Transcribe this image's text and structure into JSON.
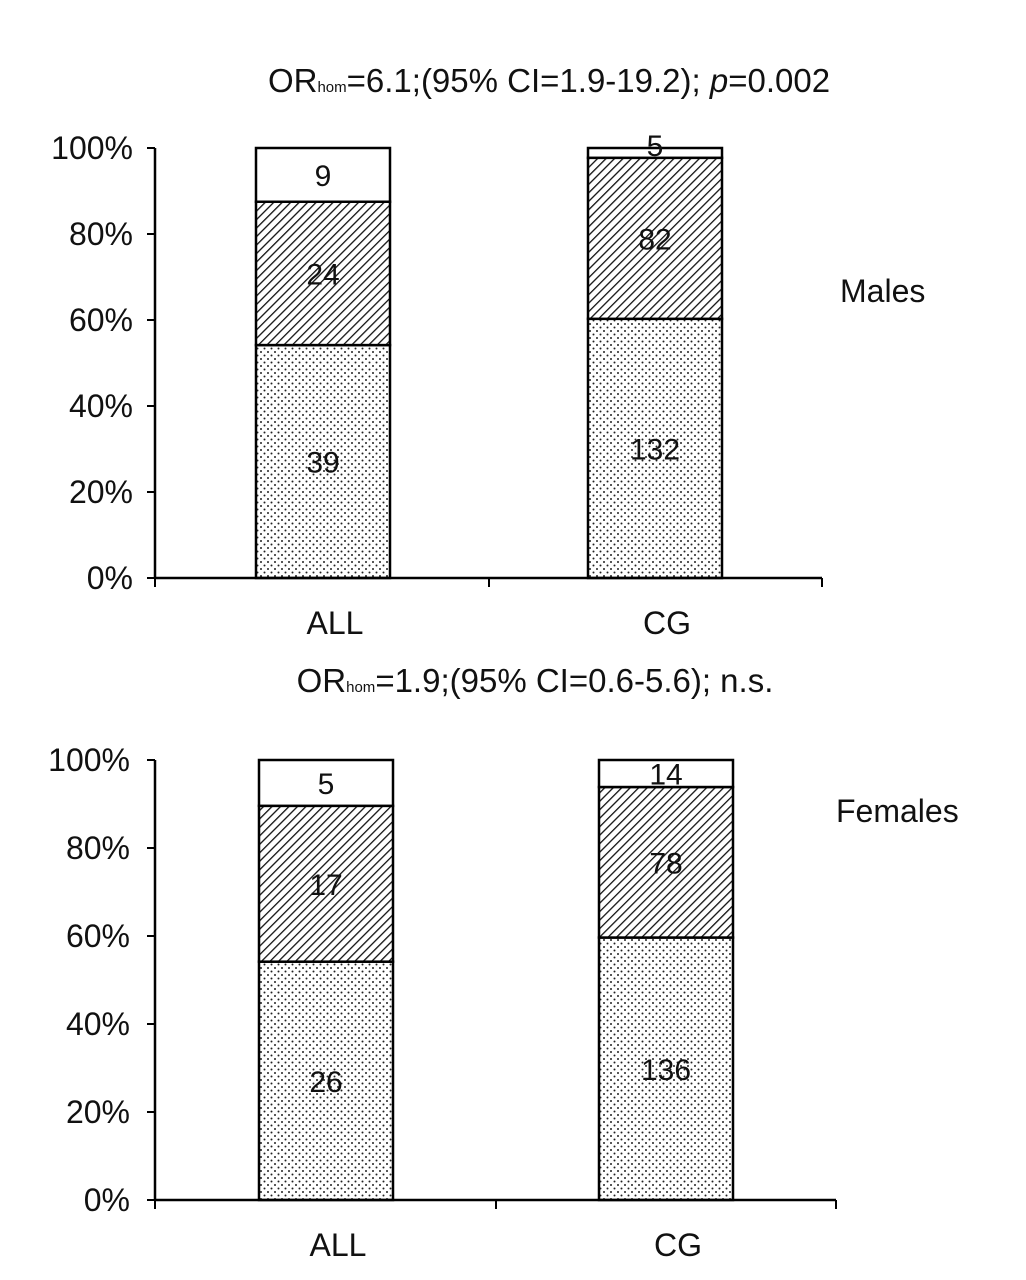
{
  "chart_data": [
    {
      "type": "bar",
      "stacked": true,
      "normalized": true,
      "title_prefix": "OR",
      "title_subscript": "hom",
      "title_suffix": "=6.1;(95% CI=1.9-19.2); ",
      "title_italic": "p",
      "title_end": "=0.002",
      "side_label": "Males",
      "categories": [
        "ALL",
        "CG"
      ],
      "yticks": [
        "0%",
        "20%",
        "40%",
        "60%",
        "80%",
        "100%"
      ],
      "ylim": [
        0,
        100
      ],
      "series": [
        {
          "pattern": "dots",
          "values": [
            39,
            132
          ],
          "labels": [
            "39",
            "132"
          ]
        },
        {
          "pattern": "hatch",
          "values": [
            24,
            82
          ],
          "labels": [
            "24",
            "82"
          ]
        },
        {
          "pattern": "white",
          "values": [
            9,
            5
          ],
          "labels": [
            "9",
            "5"
          ]
        }
      ]
    },
    {
      "type": "bar",
      "stacked": true,
      "normalized": true,
      "title_prefix": "OR",
      "title_subscript": "hom",
      "title_suffix": "=1.9;(95% CI=0.6-5.6); n.s.",
      "title_italic": "",
      "title_end": "",
      "side_label": "Females",
      "categories": [
        "ALL",
        "CG"
      ],
      "yticks": [
        "0%",
        "20%",
        "40%",
        "60%",
        "80%",
        "100%"
      ],
      "ylim": [
        0,
        100
      ],
      "series": [
        {
          "pattern": "dots",
          "values": [
            26,
            136
          ],
          "labels": [
            "26",
            "136"
          ]
        },
        {
          "pattern": "hatch",
          "values": [
            17,
            78
          ],
          "labels": [
            "17",
            "78"
          ]
        },
        {
          "pattern": "white",
          "values": [
            5,
            14
          ],
          "labels": [
            "5",
            "14"
          ]
        }
      ]
    }
  ]
}
